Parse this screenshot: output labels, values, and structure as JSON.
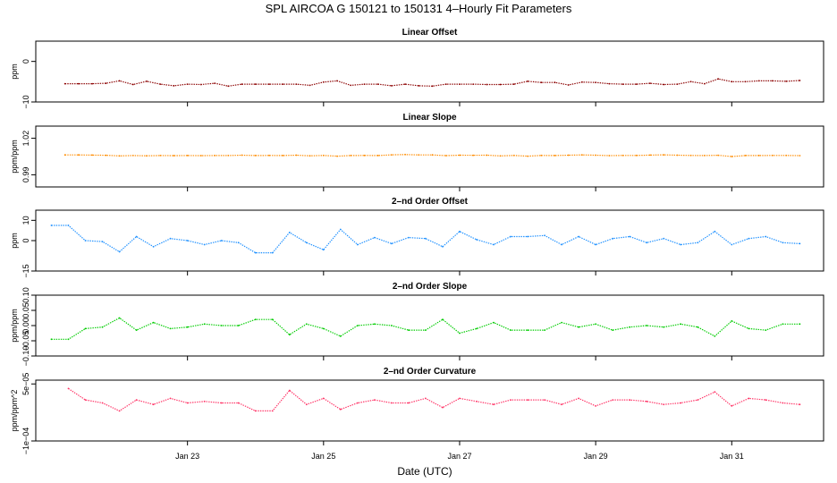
{
  "figure": {
    "title": "SPL   AIRCOA G   150121 to 150131   4–Hourly Fit Parameters",
    "xlabel": "Date (UTC)",
    "x_tick_labels": [
      "Jan 23",
      "Jan 25",
      "Jan 27",
      "Jan 29",
      "Jan 31"
    ]
  },
  "chart_data": [
    {
      "type": "line",
      "title": "Linear Offset",
      "ylabel": "ppm",
      "ylim": [
        -10,
        5
      ],
      "yticks": [
        0,
        -10
      ],
      "ytick_labels": [
        "0",
        "−10"
      ],
      "x": [
        21.2,
        21.4,
        21.6,
        21.8,
        22.0,
        22.2,
        22.4,
        22.6,
        22.8,
        23.0,
        23.2,
        23.4,
        23.6,
        23.8,
        24.0,
        24.2,
        24.4,
        24.6,
        24.8,
        25.0,
        25.2,
        25.4,
        25.6,
        25.8,
        26.0,
        26.2,
        26.4,
        26.6,
        26.8,
        27.0,
        27.2,
        27.4,
        27.6,
        27.8,
        28.0,
        28.2,
        28.4,
        28.6,
        28.8,
        29.0,
        29.2,
        29.4,
        29.6,
        29.8,
        30.0,
        30.2,
        30.4,
        30.6,
        30.8,
        31.0,
        31.2,
        31.4,
        31.6,
        31.8,
        32.0
      ],
      "series": [
        {
          "name": "",
          "color": "#8b0000",
          "values": [
            -5.5,
            -5.5,
            -5.5,
            -5.4,
            -4.8,
            -5.7,
            -4.9,
            -5.6,
            -6.0,
            -5.6,
            -5.7,
            -5.4,
            -6.1,
            -5.6,
            -5.6,
            -5.6,
            -5.6,
            -5.6,
            -5.9,
            -5.1,
            -4.8,
            -5.9,
            -5.6,
            -5.6,
            -6.0,
            -5.6,
            -6.0,
            -6.1,
            -5.6,
            -5.6,
            -5.6,
            -5.7,
            -5.7,
            -5.6,
            -4.9,
            -5.2,
            -5.2,
            -5.8,
            -5.1,
            -5.2,
            -5.5,
            -5.6,
            -5.6,
            -5.4,
            -5.7,
            -5.6,
            -5.0,
            -5.5,
            -4.3,
            -5.0,
            -5.0,
            -4.8,
            -4.8,
            -4.9,
            -4.7
          ]
        }
      ]
    },
    {
      "type": "line",
      "title": "Linear Slope",
      "ylabel": "ppm/ppm",
      "ylim": [
        0.98,
        1.03
      ],
      "yticks": [
        1.02,
        0.99
      ],
      "ytick_labels": [
        "1.02",
        "0.99"
      ],
      "x": [
        21.2,
        21.4,
        21.6,
        21.8,
        22.0,
        22.2,
        22.4,
        22.6,
        22.8,
        23.0,
        23.2,
        23.4,
        23.6,
        23.8,
        24.0,
        24.2,
        24.4,
        24.6,
        24.8,
        25.0,
        25.2,
        25.4,
        25.6,
        25.8,
        26.0,
        26.2,
        26.4,
        26.6,
        26.8,
        27.0,
        27.2,
        27.4,
        27.6,
        27.8,
        28.0,
        28.2,
        28.4,
        28.6,
        28.8,
        29.0,
        29.2,
        29.4,
        29.6,
        29.8,
        30.0,
        30.2,
        30.4,
        30.6,
        30.8,
        31.0,
        31.2,
        31.4,
        31.6,
        31.8,
        32.0
      ],
      "series": [
        {
          "name": "",
          "color": "#ff8c00",
          "values": [
            1.0063,
            1.0063,
            1.0062,
            1.006,
            1.0055,
            1.0058,
            1.0056,
            1.0058,
            1.0057,
            1.0058,
            1.0057,
            1.0058,
            1.0058,
            1.0061,
            1.0058,
            1.0059,
            1.0058,
            1.0061,
            1.0056,
            1.0059,
            1.0053,
            1.0058,
            1.0059,
            1.0058,
            1.0064,
            1.0066,
            1.0063,
            1.0063,
            1.0057,
            1.0061,
            1.006,
            1.0061,
            1.0055,
            1.0059,
            1.0053,
            1.0059,
            1.0058,
            1.0061,
            1.0063,
            1.0061,
            1.0057,
            1.0059,
            1.0059,
            1.0062,
            1.0064,
            1.0061,
            1.0059,
            1.0058,
            1.006,
            1.005,
            1.0058,
            1.0058,
            1.0059,
            1.0059,
            1.0057
          ]
        }
      ]
    },
    {
      "type": "line",
      "title": "2–nd Order Offset",
      "ylabel": "ppm",
      "ylim": [
        -15,
        15
      ],
      "yticks": [
        10,
        0,
        -15
      ],
      "ytick_labels": [
        "10",
        "0",
        "−15"
      ],
      "x": [
        21.0,
        21.25,
        21.5,
        21.75,
        22.0,
        22.25,
        22.5,
        22.75,
        23.0,
        23.25,
        23.5,
        23.75,
        24.0,
        24.25,
        24.5,
        24.75,
        25.0,
        25.25,
        25.5,
        25.75,
        26.0,
        26.25,
        26.5,
        26.75,
        27.0,
        27.25,
        27.5,
        27.75,
        28.0,
        28.25,
        28.5,
        28.75,
        29.0,
        29.25,
        29.5,
        29.75,
        30.0,
        30.25,
        30.5,
        30.75,
        31.0,
        31.25,
        31.5,
        31.75,
        32.0
      ],
      "series": [
        {
          "name": "",
          "color": "#1e90ff",
          "values": [
            7.5,
            7.5,
            0.0,
            -0.5,
            -5.5,
            2.0,
            -3.0,
            1.0,
            0.0,
            -2.0,
            0.0,
            -1.0,
            -6.0,
            -6.0,
            4.0,
            -1.0,
            -4.5,
            5.5,
            -2.0,
            1.5,
            -1.5,
            1.5,
            1.0,
            -3.0,
            4.5,
            0.5,
            -2.0,
            2.0,
            2.0,
            2.5,
            -2.0,
            2.0,
            -2.0,
            1.0,
            2.0,
            -1.0,
            1.0,
            -2.0,
            -1.0,
            4.5,
            -2.0,
            1.0,
            2.0,
            -1.0,
            -1.5
          ]
        }
      ]
    },
    {
      "type": "line",
      "title": "2–nd Order Slope",
      "ylabel": "ppm/ppm",
      "ylim": [
        -0.1,
        0.1
      ],
      "yticks": [
        0.1,
        0.05,
        0.0,
        -0.05,
        -0.1
      ],
      "ytick_labels": [
        "0.10",
        "0.05",
        "0.00",
        "−0.05",
        "−0.10"
      ],
      "x": [
        21.0,
        21.25,
        21.5,
        21.75,
        22.0,
        22.25,
        22.5,
        22.75,
        23.0,
        23.25,
        23.5,
        23.75,
        24.0,
        24.25,
        24.5,
        24.75,
        25.0,
        25.25,
        25.5,
        25.75,
        26.0,
        26.25,
        26.5,
        26.75,
        27.0,
        27.25,
        27.5,
        27.75,
        28.0,
        28.25,
        28.5,
        28.75,
        29.0,
        29.25,
        29.5,
        29.75,
        30.0,
        30.25,
        30.5,
        30.75,
        31.0,
        31.25,
        31.5,
        31.75,
        32.0
      ],
      "series": [
        {
          "name": "",
          "color": "#00cc00",
          "values": [
            -0.045,
            -0.045,
            -0.01,
            -0.005,
            0.025,
            -0.015,
            0.01,
            -0.01,
            -0.005,
            0.005,
            0.0,
            0.0,
            0.02,
            0.02,
            -0.03,
            0.005,
            -0.01,
            -0.035,
            0.0,
            0.005,
            0.0,
            -0.015,
            -0.015,
            0.02,
            -0.025,
            -0.01,
            0.01,
            -0.015,
            -0.015,
            -0.015,
            0.01,
            -0.005,
            0.005,
            -0.015,
            -0.005,
            0.0,
            -0.005,
            0.005,
            -0.005,
            -0.035,
            0.015,
            -0.01,
            -0.015,
            0.005,
            0.005
          ]
        }
      ]
    },
    {
      "type": "line",
      "title": "2–nd Order Curvature",
      "ylabel": "ppm/ppm^2",
      "ylim": [
        -0.0001,
        6e-05
      ],
      "yticks": [
        5e-05,
        -0.0001
      ],
      "ytick_labels": [
        "5e−05",
        "−1e−04"
      ],
      "x": [
        21.25,
        21.5,
        21.75,
        22.0,
        22.25,
        22.5,
        22.75,
        23.0,
        23.25,
        23.5,
        23.75,
        24.0,
        24.25,
        24.5,
        24.75,
        25.0,
        25.25,
        25.5,
        25.75,
        26.0,
        26.25,
        26.5,
        26.75,
        27.0,
        27.25,
        27.5,
        27.75,
        28.0,
        28.25,
        28.5,
        28.75,
        29.0,
        29.25,
        29.5,
        29.75,
        30.0,
        30.25,
        30.5,
        30.75,
        31.0,
        31.25,
        31.5,
        31.75,
        32.0
      ],
      "series": [
        {
          "name": "",
          "color": "#ff3366",
          "values": [
            3.8e-05,
            8e-06,
            0.0,
            -2.1e-05,
            8e-06,
            -4e-06,
            1.2e-05,
            0.0,
            4e-06,
            0.0,
            0.0,
            -2.1e-05,
            -2.1e-05,
            3.3e-05,
            -4e-06,
            1.2e-05,
            -1.7e-05,
            0.0,
            8e-06,
            0.0,
            0.0,
            1.2e-05,
            -1.2e-05,
            1.2e-05,
            4e-06,
            -4e-06,
            8e-06,
            8e-06,
            8e-06,
            -4e-06,
            1.2e-05,
            -8e-06,
            8e-06,
            8e-06,
            4e-06,
            -4e-06,
            0.0,
            8e-06,
            2.9e-05,
            -8e-06,
            1.2e-05,
            8e-06,
            0.0,
            -4e-06
          ]
        }
      ]
    }
  ]
}
